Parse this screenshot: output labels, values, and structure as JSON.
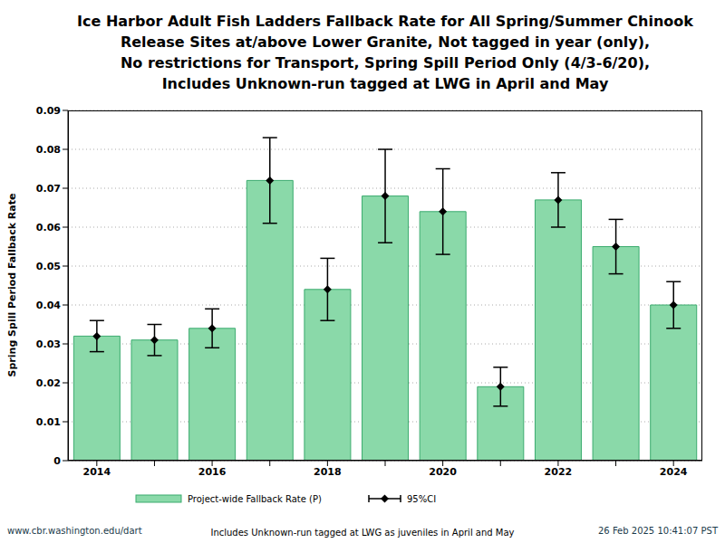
{
  "chart_data": {
    "type": "bar",
    "title": "Ice Harbor Adult Fish Ladders Fallback Rate for All Spring/Summer Chinook\nRelease Sites at/above Lower Granite, Not tagged in year (only),\nNo restrictions for Transport, Spring Spill Period Only (4/3-6/20),\nIncludes Unknown-run tagged at LWG in April and May",
    "y_label": "Spring Spill Period Fallback Rate",
    "categories": [
      "2014",
      null,
      "2016",
      null,
      "2018",
      null,
      "2020",
      null,
      "2022",
      null,
      "2024"
    ],
    "series": [
      {
        "name": "Project-wide Fallback Rate (P)",
        "color": "#8ad9a9",
        "values": [
          0.032,
          0.031,
          0.034,
          0.072,
          0.044,
          0.068,
          0.064,
          0.019,
          0.067,
          0.055,
          0.04
        ]
      }
    ],
    "error_bars": {
      "name": "95%CI",
      "color": "#000000",
      "marker": "diamond",
      "lower": [
        0.028,
        0.027,
        0.029,
        0.061,
        0.036,
        0.056,
        0.053,
        0.014,
        0.06,
        0.048,
        0.034
      ],
      "upper": [
        0.036,
        0.035,
        0.039,
        0.083,
        0.052,
        0.08,
        0.075,
        0.024,
        0.074,
        0.062,
        0.046
      ]
    },
    "ylim": [
      0,
      0.09
    ],
    "yticks": [
      0,
      0.01,
      0.02,
      0.03,
      0.04,
      0.05,
      0.06,
      0.07,
      0.08,
      0.09
    ],
    "grid": true,
    "legend": "bottom",
    "footer": {
      "left": "www.cbr.washington.edu/dart",
      "center": "Includes Unknown-run tagged at LWG as juveniles in April and May",
      "right": "26 Feb 2025 10:41:07 PST"
    }
  }
}
